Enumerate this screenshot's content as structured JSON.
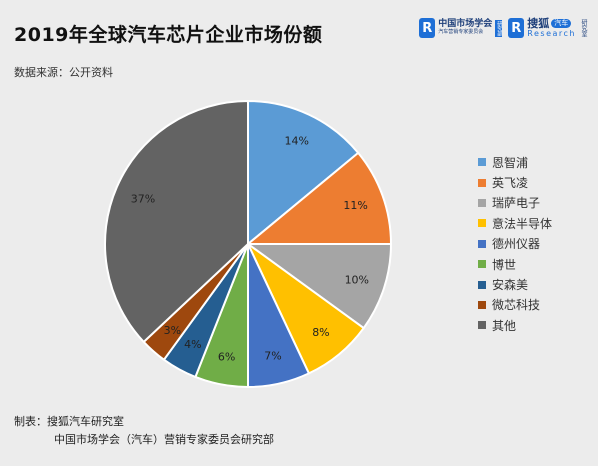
{
  "header": {
    "title": "2019年全球汽车芯片企业市场份额",
    "source": "数据来源：公开资料"
  },
  "logos": {
    "org1_badge": "R",
    "org1_main": "中国市场学会",
    "org1_sub": "汽车营销专家委员会",
    "org1_tag": "研究部",
    "org2_badge": "R",
    "org2_main": "搜狐",
    "org2_pill": "汽车",
    "org2_research": "Research",
    "org2_vert": "研究室"
  },
  "footer": {
    "line1": "制表：搜狐汽车研究室",
    "line2": "中国市场学会（汽车）营销专家委员会研究部"
  },
  "chart_data": {
    "type": "pie",
    "title": "2019年全球汽车芯片企业市场份额",
    "legend_position": "right",
    "slices": [
      {
        "name": "恩智浦",
        "value": 14,
        "label": "14%",
        "color": "#5b9bd5"
      },
      {
        "name": "英飞凌",
        "value": 11,
        "label": "11%",
        "color": "#ed7d31"
      },
      {
        "name": "瑞萨电子",
        "value": 10,
        "label": "10%",
        "color": "#a5a5a5"
      },
      {
        "name": "意法半导体",
        "value": 8,
        "label": "8%",
        "color": "#ffc000"
      },
      {
        "name": "德州仪器",
        "value": 7,
        "label": "7%",
        "color": "#4472c4"
      },
      {
        "name": "博世",
        "value": 6,
        "label": "6%",
        "color": "#70ad47"
      },
      {
        "name": "安森美",
        "value": 4,
        "label": "4%",
        "color": "#255e91"
      },
      {
        "name": "微芯科技",
        "value": 3,
        "label": "3%",
        "color": "#9e480e"
      },
      {
        "name": "其他",
        "value": 37,
        "label": "37%",
        "color": "#636363"
      }
    ]
  }
}
